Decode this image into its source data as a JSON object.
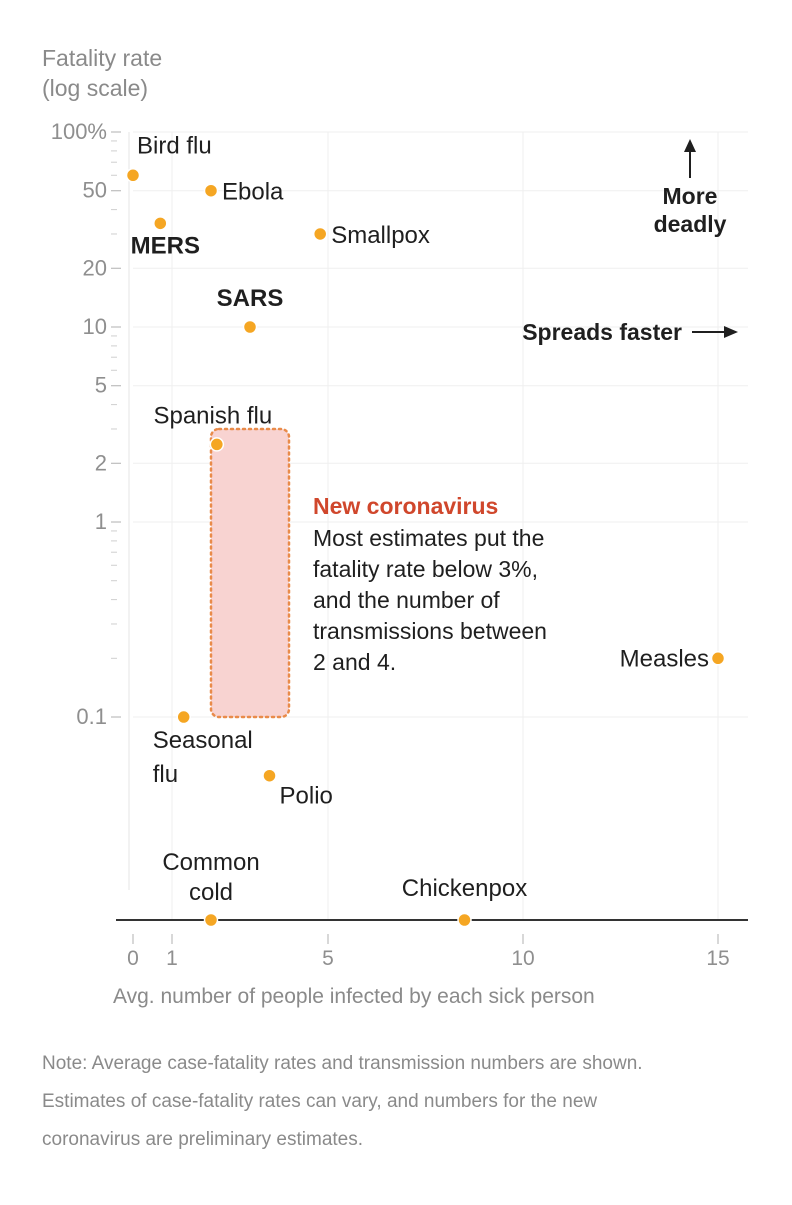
{
  "chart_data": {
    "type": "scatter",
    "y_scale": "log",
    "ylim": [
      0.0091,
      100
    ],
    "xlim": [
      0,
      15
    ],
    "y_title_lines": [
      "Fatality rate",
      "(log scale)"
    ],
    "x_title": "Avg. number of people infected by each sick person",
    "y_tick_labels": [
      {
        "value": 100,
        "label": "100%"
      },
      {
        "value": 50,
        "label": "50"
      },
      {
        "value": 20,
        "label": "20"
      },
      {
        "value": 10,
        "label": "10"
      },
      {
        "value": 5,
        "label": "5"
      },
      {
        "value": 2,
        "label": "2"
      },
      {
        "value": 1,
        "label": "1"
      },
      {
        "value": 0.1,
        "label": "0.1"
      }
    ],
    "y_minor_ticks": [
      90,
      80,
      70,
      60,
      40,
      30,
      9,
      8,
      7,
      6,
      4,
      3,
      0.9,
      0.8,
      0.7,
      0.6,
      0.5,
      0.4,
      0.3,
      0.2
    ],
    "x_tick_labels": [
      {
        "value": 0,
        "label": "0"
      },
      {
        "value": 1,
        "label": "1"
      },
      {
        "value": 5,
        "label": "5"
      },
      {
        "value": 10,
        "label": "10"
      },
      {
        "value": 15,
        "label": "15"
      }
    ],
    "points": [
      {
        "id": "bird-flu",
        "name": "Bird flu",
        "label_lines": [
          "Bird flu"
        ],
        "x": 0,
        "y": 60,
        "bold": false
      },
      {
        "id": "ebola",
        "name": "Ebola",
        "label_lines": [
          "Ebola"
        ],
        "x": 2,
        "y": 50,
        "bold": false
      },
      {
        "id": "mers",
        "name": "MERS",
        "label_lines": [
          "MERS"
        ],
        "x": 0.7,
        "y": 34,
        "bold": true
      },
      {
        "id": "smallpox",
        "name": "Smallpox",
        "label_lines": [
          "Smallpox"
        ],
        "x": 4.8,
        "y": 30,
        "bold": false
      },
      {
        "id": "sars",
        "name": "SARS",
        "label_lines": [
          "SARS"
        ],
        "x": 3,
        "y": 10,
        "bold": true
      },
      {
        "id": "spanish-flu",
        "name": "Spanish flu",
        "label_lines": [
          "Spanish flu"
        ],
        "x": 2.15,
        "y": 2.5,
        "bold": false
      },
      {
        "id": "measles",
        "name": "Measles",
        "label_lines": [
          "Measles"
        ],
        "x": 15,
        "y": 0.2,
        "bold": false
      },
      {
        "id": "seasonal-flu",
        "name": "Seasonal flu",
        "label_lines": [
          "Seasonal",
          "flu"
        ],
        "x": 1.3,
        "y": 0.1,
        "bold": false
      },
      {
        "id": "polio",
        "name": "Polio",
        "label_lines": [
          "Polio"
        ],
        "x": 3.5,
        "y": 0.05,
        "bold": false
      },
      {
        "id": "common-cold",
        "name": "Common cold",
        "label_lines": [
          "Common",
          "cold"
        ],
        "x": 2,
        "y": 0.0091,
        "bold": false
      },
      {
        "id": "chickenpox",
        "name": "Chickenpox",
        "label_lines": [
          "Chickenpox"
        ],
        "x": 8.5,
        "y": 0.0091,
        "bold": false
      }
    ],
    "highlight_region": {
      "name": "New coronavirus",
      "x_range": [
        2,
        4
      ],
      "y_range": [
        0.1,
        3
      ]
    },
    "annotation": {
      "title": "New coronavirus",
      "lines": [
        "Most estimates put the",
        "fatality rate below 3%,",
        "and the number of",
        "transmissions between",
        "2 and 4."
      ]
    },
    "corner_labels": {
      "more_deadly_lines": [
        "More",
        "deadly"
      ],
      "spreads_faster": "Spreads faster"
    },
    "note_lines": [
      "Note: Average case-fatality rates and transmission numbers are shown.",
      "Estimates of case-fatality rates can vary, and numbers for the new",
      "coronavirus are preliminary estimates."
    ],
    "colors": {
      "point": "#f5a623",
      "highlight_fill": "#f8d3d1",
      "highlight_stroke": "#e98b4a",
      "annotation_title": "#d0472c",
      "axis": "#333333",
      "grid": "#efefef",
      "muted_text": "#8a8a8a"
    }
  }
}
